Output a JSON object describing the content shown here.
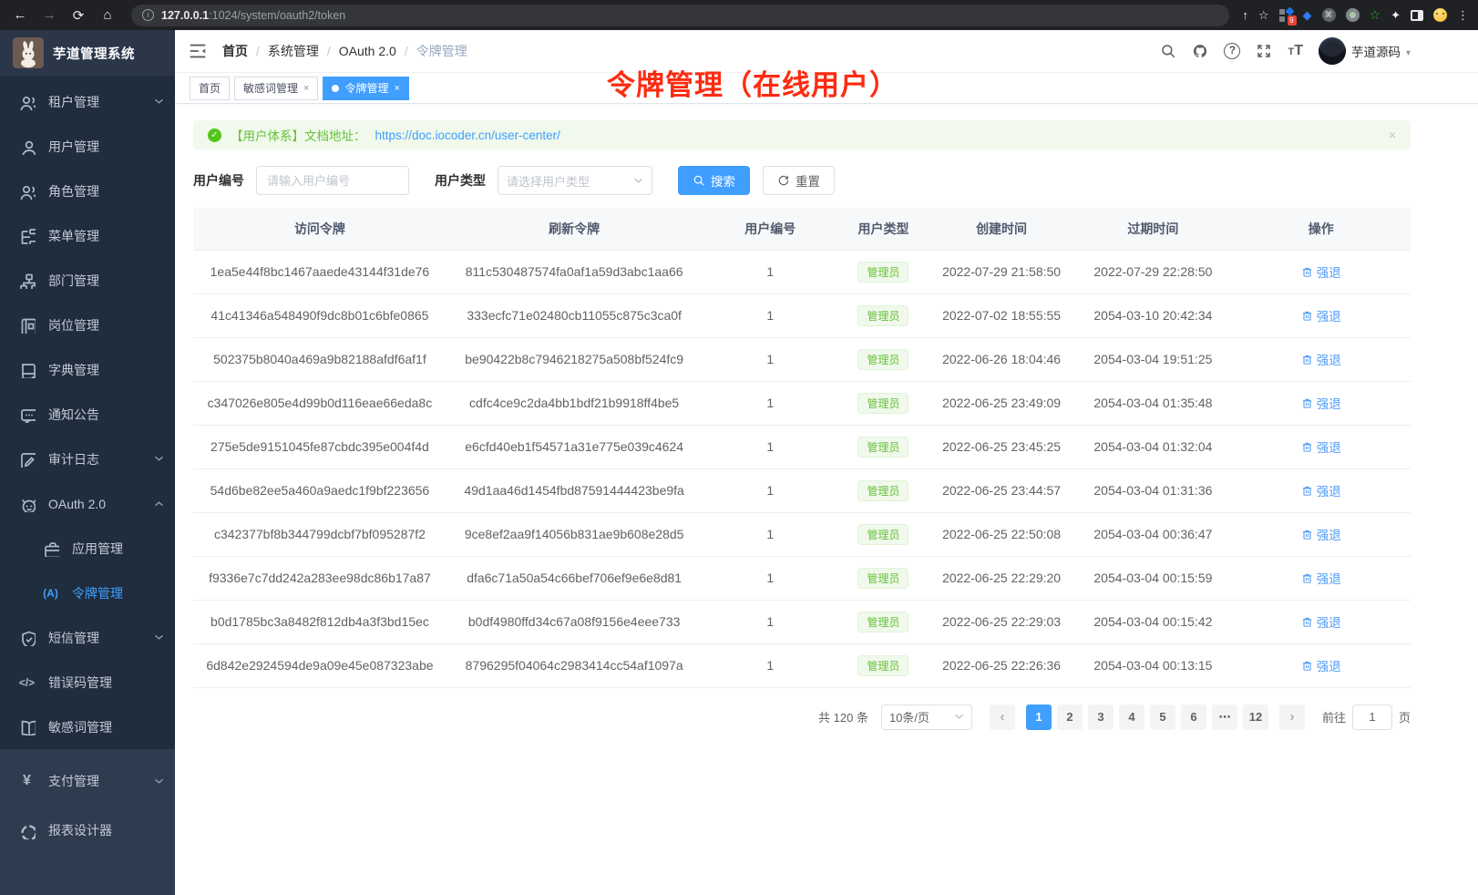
{
  "browser": {
    "url_host": "127.0.0.1",
    "url_rest": ":1024/system/oauth2/token",
    "ext_badge": "9"
  },
  "icons": {
    "back": "←",
    "forward": "→",
    "reload": "⟳",
    "home": "⌂",
    "info": "i",
    "share": "↑",
    "star": "☆",
    "gem": "◆",
    "cmd": "⌘",
    "green_star": "☆",
    "puzzle": "✦",
    "dots_menu": "⋮",
    "check": "✓",
    "close": "×",
    "caret": "▾",
    "question": "?",
    "letter_t": "T",
    "token_glyph": "(A)",
    "code_glyph": "</>",
    "yen_glyph": "¥",
    "prev": "‹",
    "next": "›"
  },
  "sidebar": {
    "title": "芋道管理系统",
    "items": [
      {
        "label": "租户管理"
      },
      {
        "label": "用户管理"
      },
      {
        "label": "角色管理"
      },
      {
        "label": "菜单管理"
      },
      {
        "label": "部门管理"
      },
      {
        "label": "岗位管理"
      },
      {
        "label": "字典管理"
      },
      {
        "label": "通知公告"
      },
      {
        "label": "审计日志"
      },
      {
        "label": "OAuth 2.0"
      },
      {
        "label": "应用管理"
      },
      {
        "label": "令牌管理"
      },
      {
        "label": "短信管理"
      },
      {
        "label": "错误码管理"
      },
      {
        "label": "敏感词管理"
      },
      {
        "label": "支付管理"
      },
      {
        "label": "报表设计器"
      }
    ]
  },
  "header": {
    "breadcrumb": [
      "首页",
      "系统管理",
      "OAuth 2.0",
      "令牌管理"
    ],
    "user": "芋道源码"
  },
  "tags": {
    "home": "首页",
    "sensitive": "敏感词管理",
    "token": "令牌管理"
  },
  "annotation": {
    "text": "令牌管理（在线用户）"
  },
  "alert": {
    "text": "【用户体系】文档地址：",
    "link": "https://doc.iocoder.cn/user-center/"
  },
  "filters": {
    "user_id_label": "用户编号",
    "user_id_placeholder": "请输入用户编号",
    "user_type_label": "用户类型",
    "user_type_placeholder": "请选择用户类型",
    "search_label": "搜索",
    "reset_label": "重置"
  },
  "table": {
    "headers": [
      "访问令牌",
      "刷新令牌",
      "用户编号",
      "用户类型",
      "创建时间",
      "过期时间",
      "操作"
    ],
    "action_label": "强退",
    "rows": [
      {
        "access": "1ea5e44f8bc1467aaede43144f31de76",
        "refresh": "811c530487574fa0af1a59d3abc1aa66",
        "user_id": "1",
        "user_type": "管理员",
        "created": "2022-07-29 21:58:50",
        "expires": "2022-07-29 22:28:50"
      },
      {
        "access": "41c41346a548490f9dc8b01c6bfe0865",
        "refresh": "333ecfc71e02480cb11055c875c3ca0f",
        "user_id": "1",
        "user_type": "管理员",
        "created": "2022-07-02 18:55:55",
        "expires": "2054-03-10 20:42:34"
      },
      {
        "access": "502375b8040a469a9b82188afdf6af1f",
        "refresh": "be90422b8c7946218275a508bf524fc9",
        "user_id": "1",
        "user_type": "管理员",
        "created": "2022-06-26 18:04:46",
        "expires": "2054-03-04 19:51:25"
      },
      {
        "access": "c347026e805e4d99b0d116eae66eda8c",
        "refresh": "cdfc4ce9c2da4bb1bdf21b9918ff4be5",
        "user_id": "1",
        "user_type": "管理员",
        "created": "2022-06-25 23:49:09",
        "expires": "2054-03-04 01:35:48"
      },
      {
        "access": "275e5de9151045fe87cbdc395e004f4d",
        "refresh": "e6cfd40eb1f54571a31e775e039c4624",
        "user_id": "1",
        "user_type": "管理员",
        "created": "2022-06-25 23:45:25",
        "expires": "2054-03-04 01:32:04"
      },
      {
        "access": "54d6be82ee5a460a9aedc1f9bf223656",
        "refresh": "49d1aa46d1454fbd87591444423be9fa",
        "user_id": "1",
        "user_type": "管理员",
        "created": "2022-06-25 23:44:57",
        "expires": "2054-03-04 01:31:36"
      },
      {
        "access": "c342377bf8b344799dcbf7bf095287f2",
        "refresh": "9ce8ef2aa9f14056b831ae9b608e28d5",
        "user_id": "1",
        "user_type": "管理员",
        "created": "2022-06-25 22:50:08",
        "expires": "2054-03-04 00:36:47"
      },
      {
        "access": "f9336e7c7dd242a283ee98dc86b17a87",
        "refresh": "dfa6c71a50a54c66bef706ef9e6e8d81",
        "user_id": "1",
        "user_type": "管理员",
        "created": "2022-06-25 22:29:20",
        "expires": "2054-03-04 00:15:59"
      },
      {
        "access": "b0d1785bc3a8482f812db4a3f3bd15ec",
        "refresh": "b0df4980ffd34c67a08f9156e4eee733",
        "user_id": "1",
        "user_type": "管理员",
        "created": "2022-06-25 22:29:03",
        "expires": "2054-03-04 00:15:42"
      },
      {
        "access": "6d842e2924594de9a09e45e087323abe",
        "refresh": "8796295f04064c2983414cc54af1097a",
        "user_id": "1",
        "user_type": "管理员",
        "created": "2022-06-25 22:26:36",
        "expires": "2054-03-04 00:13:15"
      }
    ]
  },
  "pagination": {
    "total": "共 120 条",
    "page_size": "10条/页",
    "pages": [
      "1",
      "2",
      "3",
      "4",
      "5",
      "6",
      "⋯",
      "12"
    ],
    "active": "1",
    "goto_label": "前往",
    "goto_value": "1",
    "goto_unit": "页"
  }
}
